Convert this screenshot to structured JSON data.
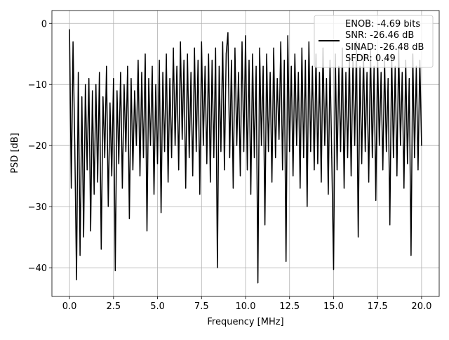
{
  "chart_data": {
    "type": "line",
    "title": "",
    "xlabel": "Frequency [MHz]",
    "ylabel": "PSD [dB]",
    "xlim": [
      -1.0,
      21.0
    ],
    "ylim": [
      -44.7,
      2.1
    ],
    "xticks": [
      0.0,
      2.5,
      5.0,
      7.5,
      10.0,
      12.5,
      15.0,
      17.5,
      20.0
    ],
    "xtick_labels": [
      "0.0",
      "2.5",
      "5.0",
      "7.5",
      "10.0",
      "12.5",
      "15.0",
      "17.5",
      "20.0"
    ],
    "yticks": [
      0,
      -10,
      -20,
      -30,
      -40
    ],
    "ytick_labels": [
      "0",
      "−10",
      "−20",
      "−30",
      "−40"
    ],
    "grid": true,
    "legend_placement": "upper-right",
    "legend": [
      "ENOB: -4.69 bits",
      "SNR: -26.46 dB",
      "SINAD: -26.48 dB",
      "SFDR: 0.49"
    ],
    "series": [
      {
        "name": "PSD",
        "color": "#000000",
        "x_start": 0.0,
        "x_step": 0.1,
        "values": [
          -1,
          -27,
          -3,
          -20,
          -42,
          -8,
          -38,
          -12,
          -35,
          -10,
          -24,
          -9,
          -34,
          -11,
          -28,
          -10,
          -26,
          -8,
          -37,
          -12,
          -22,
          -7,
          -30,
          -13,
          -25,
          -9,
          -40.5,
          -11,
          -23,
          -8,
          -27,
          -10,
          -21,
          -7,
          -32,
          -9,
          -24,
          -11,
          -20,
          -6,
          -25,
          -8,
          -22,
          -5,
          -34,
          -9,
          -20,
          -7,
          -28,
          -10,
          -23,
          -6,
          -31,
          -8,
          -21,
          -5,
          -26,
          -9,
          -22,
          -4,
          -20,
          -7,
          -24,
          -3,
          -19,
          -6,
          -27,
          -5,
          -22,
          -8,
          -25,
          -4,
          -21,
          -6,
          -28,
          -3,
          -20,
          -7,
          -23,
          -5,
          -26,
          -6,
          -22,
          -4,
          -40,
          -7,
          -21,
          -3,
          -24,
          -5,
          -1.5,
          -22,
          -6,
          -27,
          -4,
          -20,
          -8,
          -25,
          -3,
          -21,
          -2,
          -24,
          -6,
          -28,
          -5,
          -22,
          -7,
          -42.5,
          -4,
          -20,
          -7,
          -33,
          -5,
          -21,
          -8,
          -26,
          -4,
          -22,
          -9,
          -19,
          -3,
          -24,
          -6,
          -39,
          -2,
          -21,
          -7,
          -25,
          -5,
          -20,
          -8,
          -27,
          -4,
          -22,
          -6,
          -30,
          -3,
          -21,
          -7,
          -24,
          -5,
          -23,
          -8,
          -26,
          -4,
          -20,
          -9,
          -28,
          -6,
          -22,
          -40.3,
          -5,
          -24,
          -7,
          -21,
          -4,
          -27,
          -8,
          -22,
          -5,
          -25,
          -6,
          -20,
          -3,
          -35,
          -7,
          -23,
          -5,
          -21,
          -8,
          -26,
          -4,
          -22,
          -7,
          -29,
          -5,
          -20,
          -8,
          -24,
          -6,
          -21,
          -9,
          -33,
          -5,
          -22,
          -7,
          -25,
          -4,
          -20,
          -8,
          -27,
          -6,
          -23,
          -9,
          -38,
          -5,
          -22,
          -7,
          -24,
          -6,
          -20
        ]
      }
    ]
  }
}
